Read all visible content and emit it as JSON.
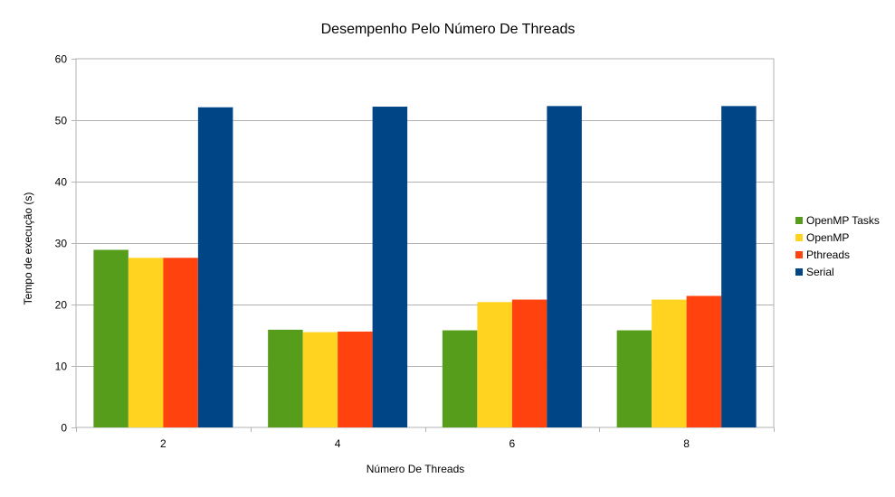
{
  "chart_data": {
    "type": "bar",
    "title": "Desempenho Pelo Número De Threads",
    "xlabel": "Número De Threads",
    "ylabel": "Tempo de execução (s)",
    "categories": [
      "2",
      "4",
      "6",
      "8"
    ],
    "ylim": [
      0,
      60
    ],
    "yticks": [
      0,
      10,
      20,
      30,
      40,
      50,
      60
    ],
    "grid": true,
    "legend_position": "right",
    "series": [
      {
        "name": "OpenMP Tasks",
        "color": "#579d1c",
        "values": [
          28.9,
          15.9,
          15.8,
          15.8
        ]
      },
      {
        "name": "OpenMP",
        "color": "#ffd320",
        "values": [
          27.6,
          15.5,
          20.4,
          20.8
        ]
      },
      {
        "name": "Pthreads",
        "color": "#ff420e",
        "values": [
          27.6,
          15.6,
          20.8,
          21.4
        ]
      },
      {
        "name": "Serial",
        "color": "#004586",
        "values": [
          52.1,
          52.2,
          52.3,
          52.3
        ]
      }
    ]
  }
}
